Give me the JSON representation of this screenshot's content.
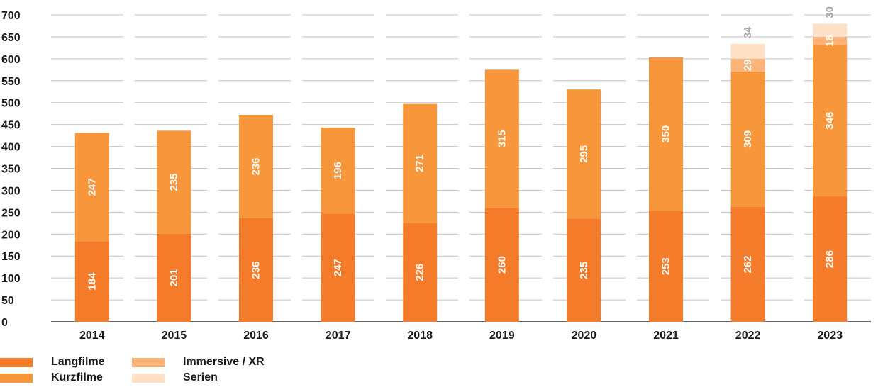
{
  "chart_data": {
    "type": "bar",
    "stacked": true,
    "categories": [
      "2014",
      "2015",
      "2016",
      "2017",
      "2018",
      "2019",
      "2020",
      "2021",
      "2022",
      "2023"
    ],
    "series": [
      {
        "name": "Langfilme",
        "color": "#f47b2a",
        "values": [
          184,
          201,
          236,
          247,
          226,
          260,
          235,
          253,
          262,
          286
        ]
      },
      {
        "name": "Kurzfilme",
        "color": "#f7963a",
        "values": [
          247,
          235,
          236,
          196,
          271,
          315,
          295,
          350,
          309,
          346
        ]
      },
      {
        "name": "Immersive / XR",
        "color": "#fab479",
        "values": [
          0,
          0,
          0,
          0,
          0,
          0,
          0,
          0,
          29,
          18
        ]
      },
      {
        "name": "Serien",
        "color": "#fde0c5",
        "values": [
          0,
          0,
          0,
          0,
          0,
          0,
          0,
          0,
          34,
          30
        ]
      }
    ],
    "ylim": [
      0,
      700
    ],
    "yticks": [
      0,
      50,
      100,
      150,
      200,
      250,
      300,
      350,
      400,
      450,
      500,
      550,
      600,
      650,
      700
    ],
    "grid": "horizontal dashed",
    "legend_position": "bottom-left",
    "title": "",
    "xlabel": "",
    "ylabel": ""
  },
  "legend": {
    "items": [
      {
        "label": "Langfilme",
        "color": "#f47b2a"
      },
      {
        "label": "Kurzfilme",
        "color": "#f7963a"
      },
      {
        "label": "Immersive / XR",
        "color": "#fab479"
      },
      {
        "label": "Serien",
        "color": "#fde0c5"
      }
    ]
  }
}
